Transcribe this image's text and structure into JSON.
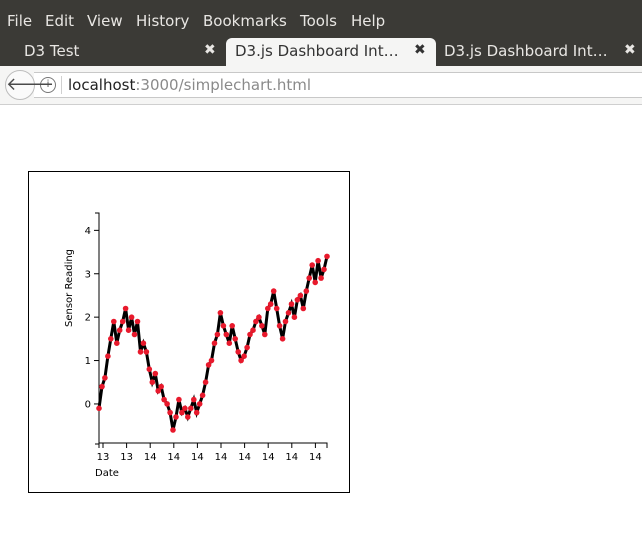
{
  "menubar": {
    "items": [
      {
        "label": "File"
      },
      {
        "label": "Edit"
      },
      {
        "label": "View"
      },
      {
        "label": "History"
      },
      {
        "label": "Bookmarks"
      },
      {
        "label": "Tools"
      },
      {
        "label": "Help"
      }
    ]
  },
  "tabs": [
    {
      "title": "D3 Test",
      "active": false
    },
    {
      "title": "D3.js Dashboard Intr…",
      "active": true
    },
    {
      "title": "D3.js Dashboard Intr…",
      "active": false
    }
  ],
  "addressbar": {
    "host": "localhost",
    "path": ":3000/simplechart.html"
  },
  "colors": {
    "point": "#e8192c",
    "line": "#000000",
    "chrome": "#3b3a36"
  },
  "chart_data": {
    "type": "line",
    "title": "",
    "xlabel": "Date",
    "ylabel": "Sensor Reading",
    "ylim": [
      -0.9,
      4.4
    ],
    "grid": false,
    "x_tick_labels": [
      "13",
      "13",
      "14",
      "14",
      "14",
      "14",
      "14",
      "14",
      "14",
      "14"
    ],
    "y_ticks": [
      0,
      1,
      2,
      3,
      4
    ],
    "series": [
      {
        "values": [
          -0.1,
          0.4,
          0.6,
          1.1,
          1.5,
          1.9,
          1.4,
          1.7,
          1.9,
          2.2,
          1.7,
          2.0,
          1.6,
          1.9,
          1.2,
          1.4,
          1.2,
          0.8,
          0.5,
          0.7,
          0.3,
          0.4,
          0.1,
          0.0,
          -0.2,
          -0.6,
          -0.3,
          0.1,
          -0.2,
          -0.1,
          -0.3,
          -0.1,
          0.1,
          -0.2,
          0.0,
          0.2,
          0.5,
          0.9,
          1.0,
          1.4,
          1.6,
          2.1,
          1.8,
          1.6,
          1.4,
          1.8,
          1.5,
          1.2,
          1.0,
          1.1,
          1.3,
          1.6,
          1.7,
          1.9,
          2.0,
          1.8,
          1.6,
          2.2,
          2.3,
          2.6,
          2.2,
          1.8,
          1.5,
          1.9,
          2.1,
          2.3,
          2.0,
          2.4,
          2.5,
          2.2,
          2.6,
          2.9,
          3.2,
          2.8,
          3.3,
          2.9,
          3.1,
          3.4
        ]
      }
    ]
  }
}
